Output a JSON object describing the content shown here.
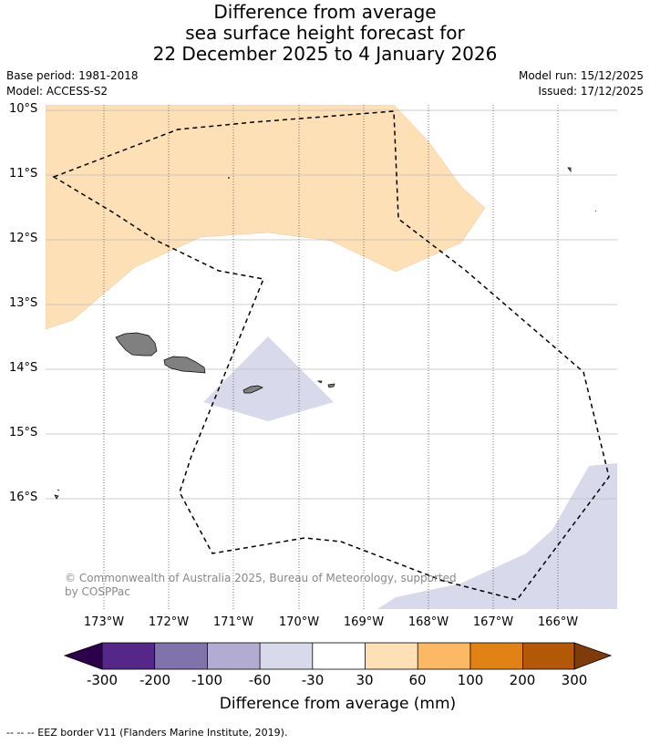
{
  "title": {
    "line1": "Difference from average",
    "line2": "sea surface height forecast for",
    "line3": "22 December 2025 to 4 January 2026"
  },
  "meta": {
    "base_period": "Base period: 1981-2018",
    "model": "Model: ACCESS-S2",
    "model_run": "Model run: 15/12/2025",
    "issued": "Issued: 17/12/2025"
  },
  "axes": {
    "lat_labels": [
      "10°S",
      "11°S",
      "12°S",
      "13°S",
      "14°S",
      "15°S",
      "16°S"
    ],
    "lon_labels": [
      "173°W",
      "172°W",
      "171°W",
      "170°W",
      "169°W",
      "168°W",
      "167°W",
      "166°W"
    ]
  },
  "colorbar": {
    "labels": [
      "-300",
      "-200",
      "-100",
      "-60",
      "-30",
      "30",
      "60",
      "100",
      "200",
      "300"
    ],
    "colors": [
      "#2d004b",
      "#542788",
      "#8073ac",
      "#b2abd2",
      "#d8daeb",
      "#ffffff",
      "#fee0b6",
      "#fdb863",
      "#e08214",
      "#b35806",
      "#7f3b08"
    ],
    "title": "Difference from average (mm)"
  },
  "copyright": "© Commonwealth of Australia 2025, Bureau of Meteorology, supported by COSPPac",
  "footnote": "--  --  -- EEZ border V11 (Flanders Marine Institute, 2019).",
  "colors": {
    "positive_30_60": "#fee0b6",
    "negative_30_60": "#d8daeb",
    "land": "#808080"
  }
}
